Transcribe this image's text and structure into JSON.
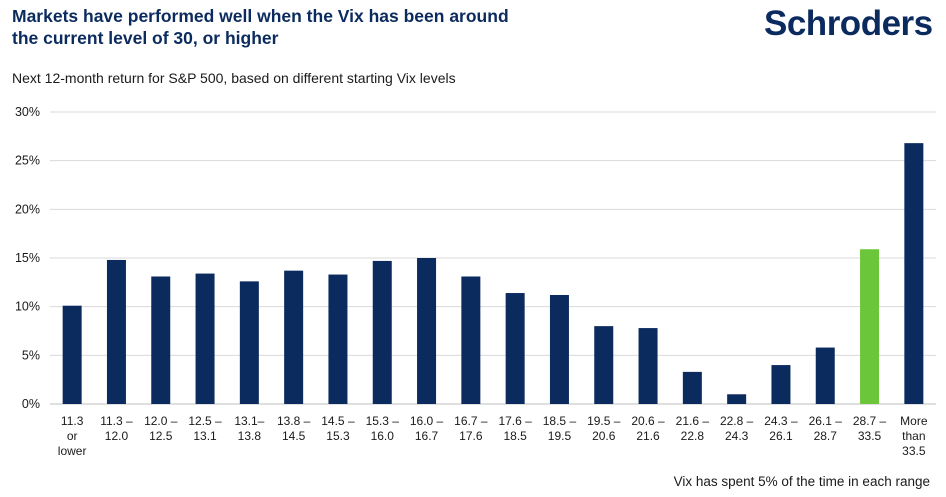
{
  "title_lines": [
    "Markets have performed well when the Vix has been around",
    "the current level of 30, or higher"
  ],
  "brand": "Schroders",
  "subtitle": "Next 12-month return for S&P 500, based on different starting Vix levels",
  "footnote": "Vix has spent 5% of the time in each range",
  "colors": {
    "bar": "#0b2a5e",
    "highlight": "#6cc63a",
    "grid": "#d9d9d9",
    "brand": "#0b2a5e"
  },
  "chart_data": {
    "type": "bar",
    "title": "",
    "xlabel": "",
    "ylabel": "",
    "ylim": [
      0,
      30
    ],
    "yticks": [
      0,
      5,
      10,
      15,
      20,
      25,
      30
    ],
    "ytick_labels": [
      "0%",
      "5%",
      "10%",
      "15%",
      "20%",
      "25%",
      "30%"
    ],
    "grid": true,
    "categories": [
      [
        "11.3",
        "or",
        "lower"
      ],
      [
        "11.3 –",
        "12.0"
      ],
      [
        "12.0 –",
        "12.5"
      ],
      [
        "12.5 –",
        "13.1"
      ],
      [
        "13.1–",
        "13.8"
      ],
      [
        "13.8 –",
        "14.5"
      ],
      [
        "14.5 –",
        "15.3"
      ],
      [
        "15.3 –",
        "16.0"
      ],
      [
        "16.0 –",
        "16.7"
      ],
      [
        "16.7 –",
        "17.6"
      ],
      [
        "17.6 –",
        "18.5"
      ],
      [
        "18.5 –",
        "19.5"
      ],
      [
        "19.5 –",
        "20.6"
      ],
      [
        "20.6 –",
        "21.6"
      ],
      [
        "21.6 –",
        "22.8"
      ],
      [
        "22.8 –",
        "24.3"
      ],
      [
        "24.3 –",
        "26.1"
      ],
      [
        "26.1 –",
        "28.7"
      ],
      [
        "28.7 –",
        "33.5"
      ],
      [
        "More",
        "than",
        "33.5"
      ]
    ],
    "values": [
      10.1,
      14.8,
      13.1,
      13.4,
      12.6,
      13.7,
      13.3,
      14.7,
      15.0,
      13.1,
      11.4,
      11.2,
      8.0,
      7.8,
      3.3,
      1.0,
      4.0,
      5.8,
      15.9,
      26.8
    ],
    "highlight_index": 18
  }
}
